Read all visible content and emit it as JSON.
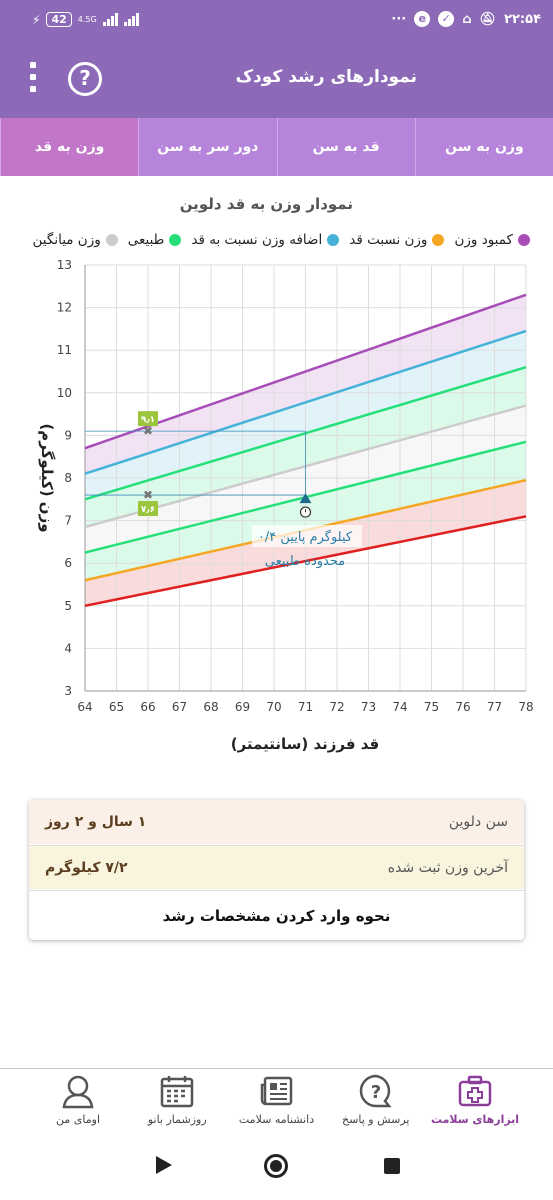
{
  "status_bar": {
    "time": "۲۲:۵۴",
    "battery": "42",
    "network": "4.5G",
    "dots": "···"
  },
  "app_bar": {
    "title": "نمودارهای رشد کودک",
    "help_symbol": "?"
  },
  "tabs": [
    {
      "label": "وزن به سن",
      "active": false
    },
    {
      "label": "قد به سن",
      "active": false
    },
    {
      "label": "دور سر به سن",
      "active": false
    },
    {
      "label": "وزن به قد",
      "active": true
    }
  ],
  "chart_title": "نمودار وزن به قد دلوین",
  "legend": [
    {
      "label": "کمبود وزن",
      "color": "#a64db8"
    },
    {
      "label": "وزن نسبت قد",
      "color": "#f5a623"
    },
    {
      "label": "اضافه وزن نسبت به قد",
      "color": "#45b3d8"
    },
    {
      "label": "طبیعی",
      "color": "#25e07a"
    },
    {
      "label": "وزن میانگین",
      "color": "#cccccc"
    }
  ],
  "chart_data": {
    "type": "area",
    "xlabel": "قد فرزند (سانتیمتر)",
    "ylabel": "وزن (کیلوگرم)",
    "xlim": [
      64,
      78
    ],
    "ylim": [
      3,
      13
    ],
    "x_ticks": [
      "64",
      "65",
      "66",
      "67",
      "68",
      "69",
      "70",
      "71",
      "72",
      "73",
      "74",
      "75",
      "76",
      "77",
      "78"
    ],
    "y_ticks": [
      "3",
      "4",
      "5",
      "6",
      "7",
      "8",
      "9",
      "10",
      "11",
      "12",
      "13"
    ],
    "grid": true,
    "series": [
      {
        "color": "#a64db8",
        "x": [
          64,
          78
        ],
        "y": [
          8.7,
          12.3
        ]
      },
      {
        "color": "#45b3d8",
        "x": [
          64,
          78
        ],
        "y": [
          8.1,
          11.45
        ]
      },
      {
        "color": "#25e07a",
        "x": [
          64,
          78
        ],
        "y": [
          7.5,
          10.6
        ]
      },
      {
        "color": "#cccccc",
        "x": [
          64,
          78
        ],
        "y": [
          6.85,
          9.7
        ]
      },
      {
        "color": "#25e07a",
        "x": [
          64,
          78
        ],
        "y": [
          6.25,
          8.85
        ]
      },
      {
        "color": "#f5a623",
        "x": [
          64,
          78
        ],
        "y": [
          5.6,
          7.95
        ]
      },
      {
        "color": "#e02020",
        "x": [
          64,
          78
        ],
        "y": [
          5.0,
          7.1
        ]
      }
    ],
    "markers": [
      {
        "x": 66,
        "y": 9.1,
        "label": "۹٫۱"
      },
      {
        "x": 66,
        "y": 7.6,
        "label": "۷٫۶"
      }
    ],
    "current_point": {
      "x": 71,
      "y": 7.2,
      "arrow_y": 7.55
    },
    "annotation": [
      "۰/۴ کیلوگرم پایین",
      "محدوده طبیعی"
    ]
  },
  "info_card": {
    "age_label": "سن دلوین",
    "age_value": "۱ سال و ۲ روز",
    "weight_label": "آخرین وزن ثبت شده",
    "weight_value": "۷/۲ کیلوگرم",
    "how_to_label": "نحوه وارد کردن مشخصات رشد"
  },
  "bottom_nav": [
    {
      "label": "ابزارهای سلامت",
      "icon": "medical-kit-icon",
      "active": true
    },
    {
      "label": "پرسش و پاسخ",
      "icon": "question-bubble-icon",
      "active": false
    },
    {
      "label": "دانشنامه سلامت",
      "icon": "newspaper-icon",
      "active": false
    },
    {
      "label": "روزشمار بانو",
      "icon": "calendar-icon",
      "active": false
    },
    {
      "label": "اومای من",
      "icon": "user-profile-icon",
      "active": false
    }
  ]
}
